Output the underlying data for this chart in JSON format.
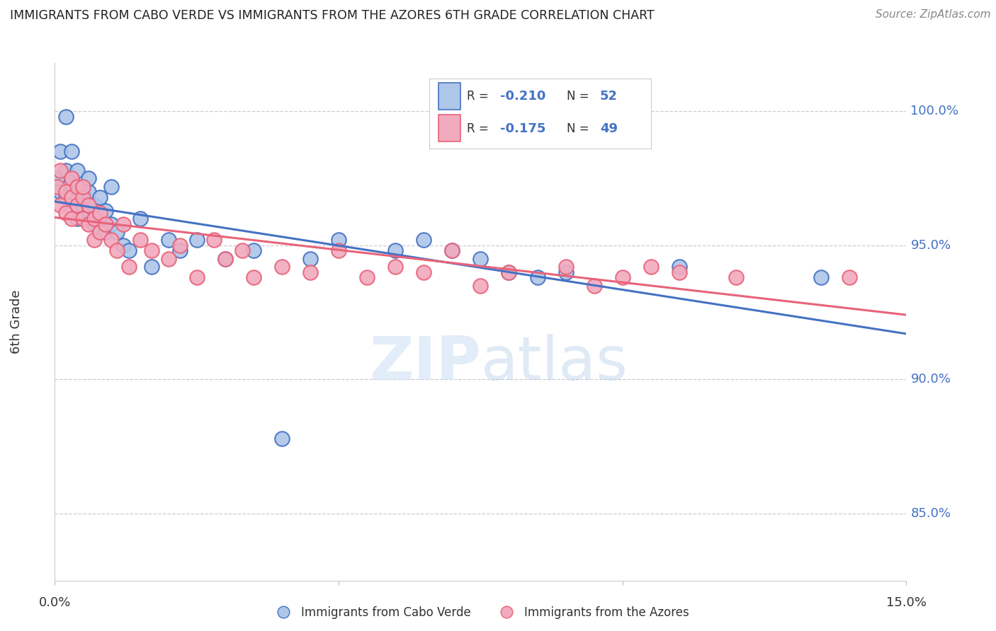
{
  "title": "IMMIGRANTS FROM CABO VERDE VS IMMIGRANTS FROM THE AZORES 6TH GRADE CORRELATION CHART",
  "source": "Source: ZipAtlas.com",
  "ylabel": "6th Grade",
  "yaxis_labels": [
    "100.0%",
    "95.0%",
    "90.0%",
    "85.0%"
  ],
  "yaxis_values": [
    1.0,
    0.95,
    0.9,
    0.85
  ],
  "xmin": 0.0,
  "xmax": 0.15,
  "ymin": 0.825,
  "ymax": 1.018,
  "color_blue": "#aec6e8",
  "color_pink": "#f2aabe",
  "line_blue": "#4472c4",
  "line_pink": "#e8637a",
  "cabo_verde_x": [
    0.0005,
    0.001,
    0.001,
    0.002,
    0.002,
    0.002,
    0.003,
    0.003,
    0.003,
    0.004,
    0.004,
    0.004,
    0.004,
    0.005,
    0.005,
    0.005,
    0.005,
    0.006,
    0.006,
    0.006,
    0.006,
    0.007,
    0.007,
    0.008,
    0.008,
    0.008,
    0.009,
    0.009,
    0.01,
    0.01,
    0.011,
    0.012,
    0.013,
    0.015,
    0.017,
    0.02,
    0.022,
    0.025,
    0.03,
    0.035,
    0.04,
    0.045,
    0.05,
    0.06,
    0.065,
    0.07,
    0.075,
    0.08,
    0.085,
    0.09,
    0.11,
    0.135
  ],
  "cabo_verde_y": [
    0.975,
    0.985,
    0.97,
    0.978,
    0.968,
    0.998,
    0.975,
    0.968,
    0.985,
    0.972,
    0.965,
    0.978,
    0.96,
    0.97,
    0.965,
    0.972,
    0.96,
    0.963,
    0.97,
    0.975,
    0.965,
    0.958,
    0.965,
    0.96,
    0.955,
    0.968,
    0.955,
    0.963,
    0.958,
    0.972,
    0.955,
    0.95,
    0.948,
    0.96,
    0.942,
    0.952,
    0.948,
    0.952,
    0.945,
    0.948,
    0.878,
    0.945,
    0.952,
    0.948,
    0.952,
    0.948,
    0.945,
    0.94,
    0.938,
    0.94,
    0.942,
    0.938
  ],
  "azores_x": [
    0.0005,
    0.001,
    0.001,
    0.002,
    0.002,
    0.003,
    0.003,
    0.003,
    0.004,
    0.004,
    0.005,
    0.005,
    0.005,
    0.006,
    0.006,
    0.007,
    0.007,
    0.008,
    0.008,
    0.009,
    0.01,
    0.011,
    0.012,
    0.013,
    0.015,
    0.017,
    0.02,
    0.022,
    0.025,
    0.028,
    0.03,
    0.033,
    0.035,
    0.04,
    0.045,
    0.05,
    0.055,
    0.06,
    0.065,
    0.07,
    0.075,
    0.08,
    0.09,
    0.095,
    0.1,
    0.105,
    0.11,
    0.12,
    0.14
  ],
  "azores_y": [
    0.972,
    0.978,
    0.965,
    0.97,
    0.962,
    0.975,
    0.968,
    0.96,
    0.972,
    0.965,
    0.968,
    0.96,
    0.972,
    0.958,
    0.965,
    0.96,
    0.952,
    0.962,
    0.955,
    0.958,
    0.952,
    0.948,
    0.958,
    0.942,
    0.952,
    0.948,
    0.945,
    0.95,
    0.938,
    0.952,
    0.945,
    0.948,
    0.938,
    0.942,
    0.94,
    0.948,
    0.938,
    0.942,
    0.94,
    0.948,
    0.935,
    0.94,
    0.942,
    0.935,
    0.938,
    0.942,
    0.94,
    0.938,
    0.938
  ]
}
